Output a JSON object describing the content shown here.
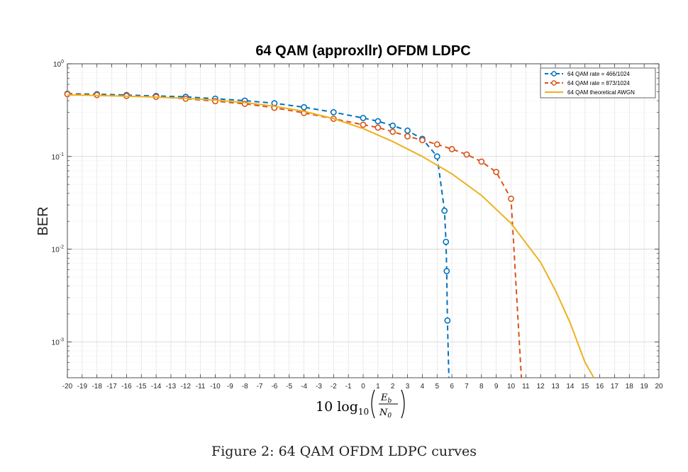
{
  "caption": "Figure 2: 64 QAM OFDM LDPC curves",
  "chart_data": {
    "type": "line",
    "title": "64 QAM (approxllr) OFDM LDPC",
    "ylabel": "BER",
    "xlabel": "10 log10 (Eb / N0)",
    "xlabel_parts": {
      "prefix": "10 log",
      "sub": "10",
      "num": "E",
      "num_sub": "b",
      "den": "N",
      "den_sub": "0"
    },
    "xlim": [
      -20,
      20
    ],
    "xticks": [
      -20,
      -19,
      -18,
      -17,
      -16,
      -15,
      -14,
      -13,
      -12,
      -11,
      -10,
      -9,
      -8,
      -7,
      -6,
      -5,
      -4,
      -3,
      -2,
      -1,
      0,
      1,
      2,
      3,
      4,
      5,
      6,
      7,
      8,
      9,
      10,
      11,
      12,
      13,
      14,
      15,
      16,
      17,
      18,
      19,
      20
    ],
    "ylim": [
      0.00041,
      1
    ],
    "yscale": "log",
    "yticks": [
      {
        "value": 1,
        "base": "10",
        "exp": "0"
      },
      {
        "value": 0.1,
        "base": "10",
        "exp": "-1"
      },
      {
        "value": 0.01,
        "base": "10",
        "exp": "-2"
      },
      {
        "value": 0.001,
        "base": "10",
        "exp": "-3"
      }
    ],
    "grid": true,
    "legend_position": "top-right",
    "series": [
      {
        "name": "64 QAM rate = 466/1024",
        "color": "#0072BD",
        "line": "dashed",
        "marker": "circle",
        "x": [
          -20,
          -18,
          -16,
          -14,
          -12,
          -10,
          -8,
          -6,
          -4,
          -2,
          0,
          1,
          2,
          3,
          4,
          5,
          5.5,
          5.6,
          5.65,
          5.7
        ],
        "y": [
          0.475,
          0.47,
          0.46,
          0.45,
          0.44,
          0.42,
          0.4,
          0.375,
          0.34,
          0.3,
          0.26,
          0.24,
          0.215,
          0.19,
          0.155,
          0.1,
          0.026,
          0.012,
          0.0058,
          0.0017
        ],
        "tail": {
          "x": 5.8,
          "y": 0.00041
        }
      },
      {
        "name": "64 QAM rate = 873/1024",
        "color": "#D95319",
        "line": "dashed",
        "marker": "circle",
        "x": [
          -20,
          -18,
          -16,
          -14,
          -12,
          -10,
          -8,
          -6,
          -4,
          -2,
          0,
          1,
          2,
          3,
          4,
          5,
          6,
          7,
          8,
          9,
          10
        ],
        "y": [
          0.47,
          0.46,
          0.45,
          0.44,
          0.42,
          0.395,
          0.37,
          0.335,
          0.295,
          0.255,
          0.22,
          0.205,
          0.185,
          0.165,
          0.15,
          0.135,
          0.12,
          0.105,
          0.088,
          0.068,
          0.035
        ],
        "tail": {
          "x": 10.7,
          "y": 0.00041
        }
      },
      {
        "name": "64 QAM theoretical AWGN",
        "color": "#EDB120",
        "line": "solid",
        "marker": "none",
        "x": [
          -20,
          -18,
          -16,
          -14,
          -12,
          -10,
          -8,
          -6,
          -4,
          -2,
          0,
          2,
          4,
          6,
          8,
          10,
          12,
          13,
          14,
          15,
          15.6
        ],
        "y": [
          0.462,
          0.455,
          0.447,
          0.437,
          0.424,
          0.406,
          0.382,
          0.349,
          0.307,
          0.256,
          0.2,
          0.145,
          0.1,
          0.065,
          0.038,
          0.019,
          0.0072,
          0.0036,
          0.0016,
          0.0006,
          0.00041
        ]
      }
    ]
  }
}
